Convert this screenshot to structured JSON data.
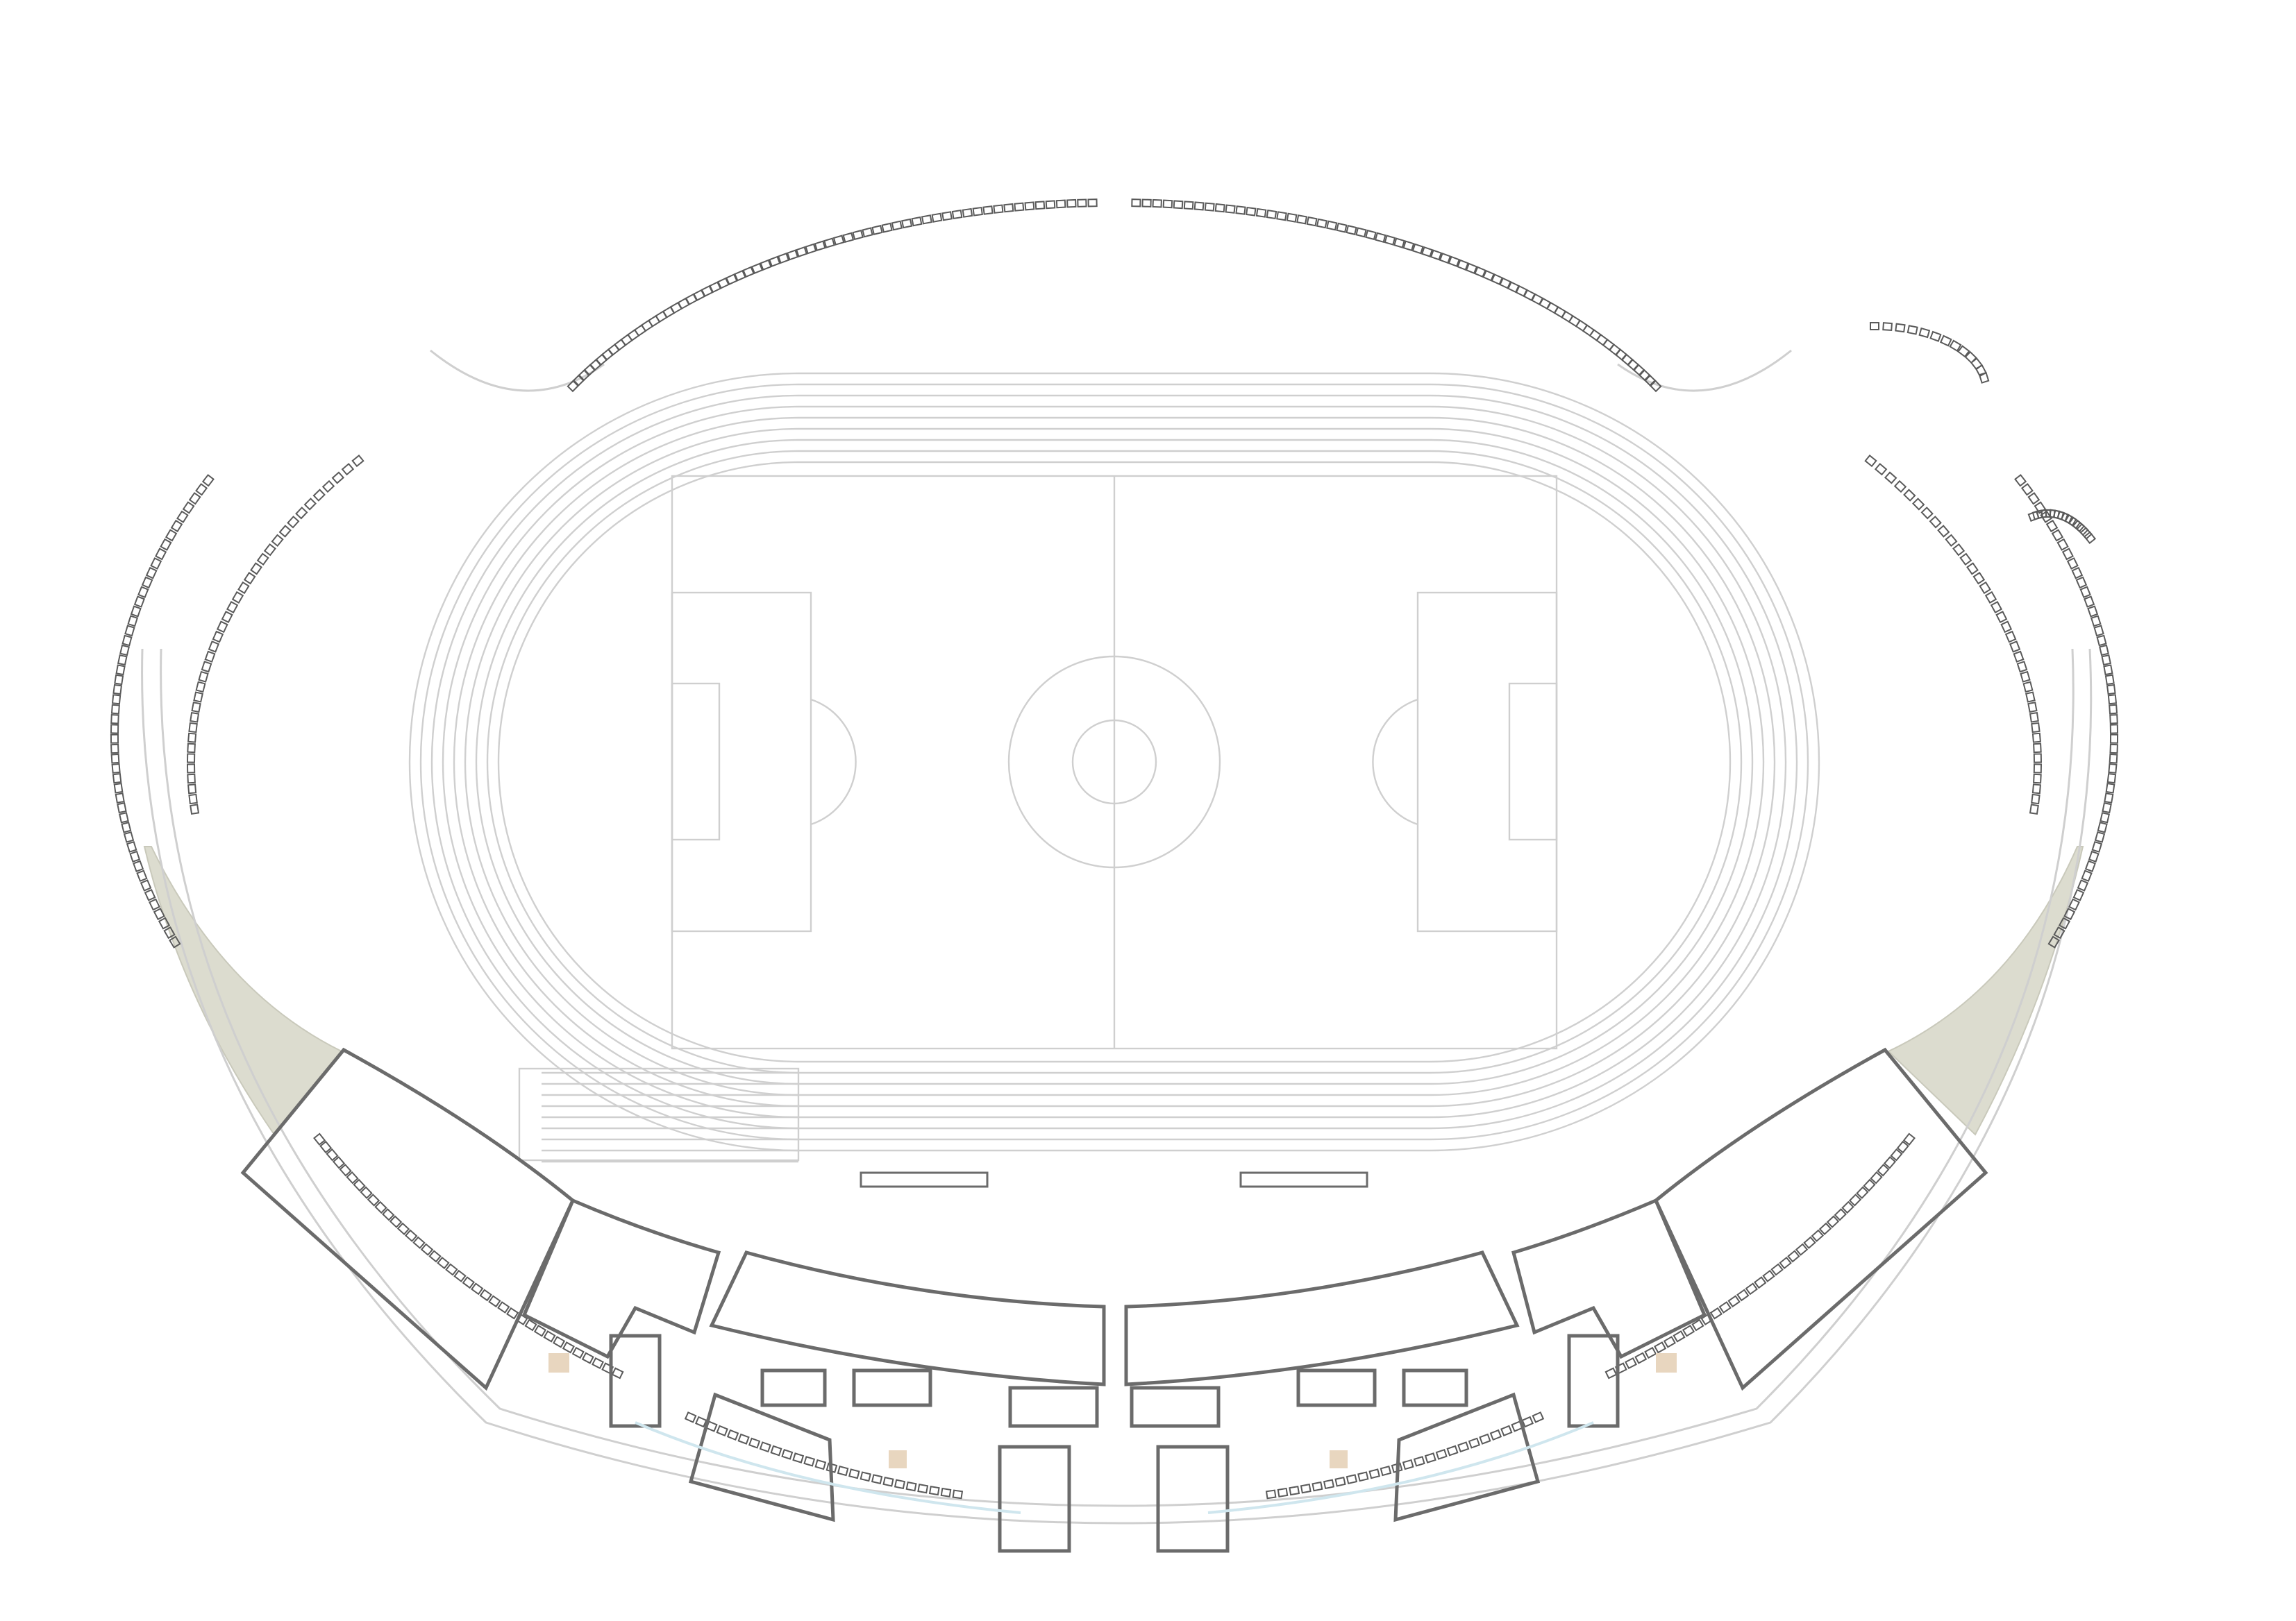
{
  "drawing": {
    "kind": "stadium-floor-plan",
    "labels": []
  },
  "elements": {
    "football_pitch": "football-pitch",
    "running_track": "running-track",
    "sprint_straight": "sprint-straight",
    "main_stand": "main-stand",
    "seat_rows": "spectator-seat-rows",
    "player_benches": "player-benches",
    "landscaped_areas": "landscaped-areas"
  },
  "colors": {
    "background": "#ffffff",
    "fine_line": "#cfcfcf",
    "wall": "#6b6b6b",
    "seat": "#5a5a5a",
    "landscape": "#dcdccf",
    "accent_wood": "#e8d6bf",
    "accent_water": "#cfe6ee"
  }
}
